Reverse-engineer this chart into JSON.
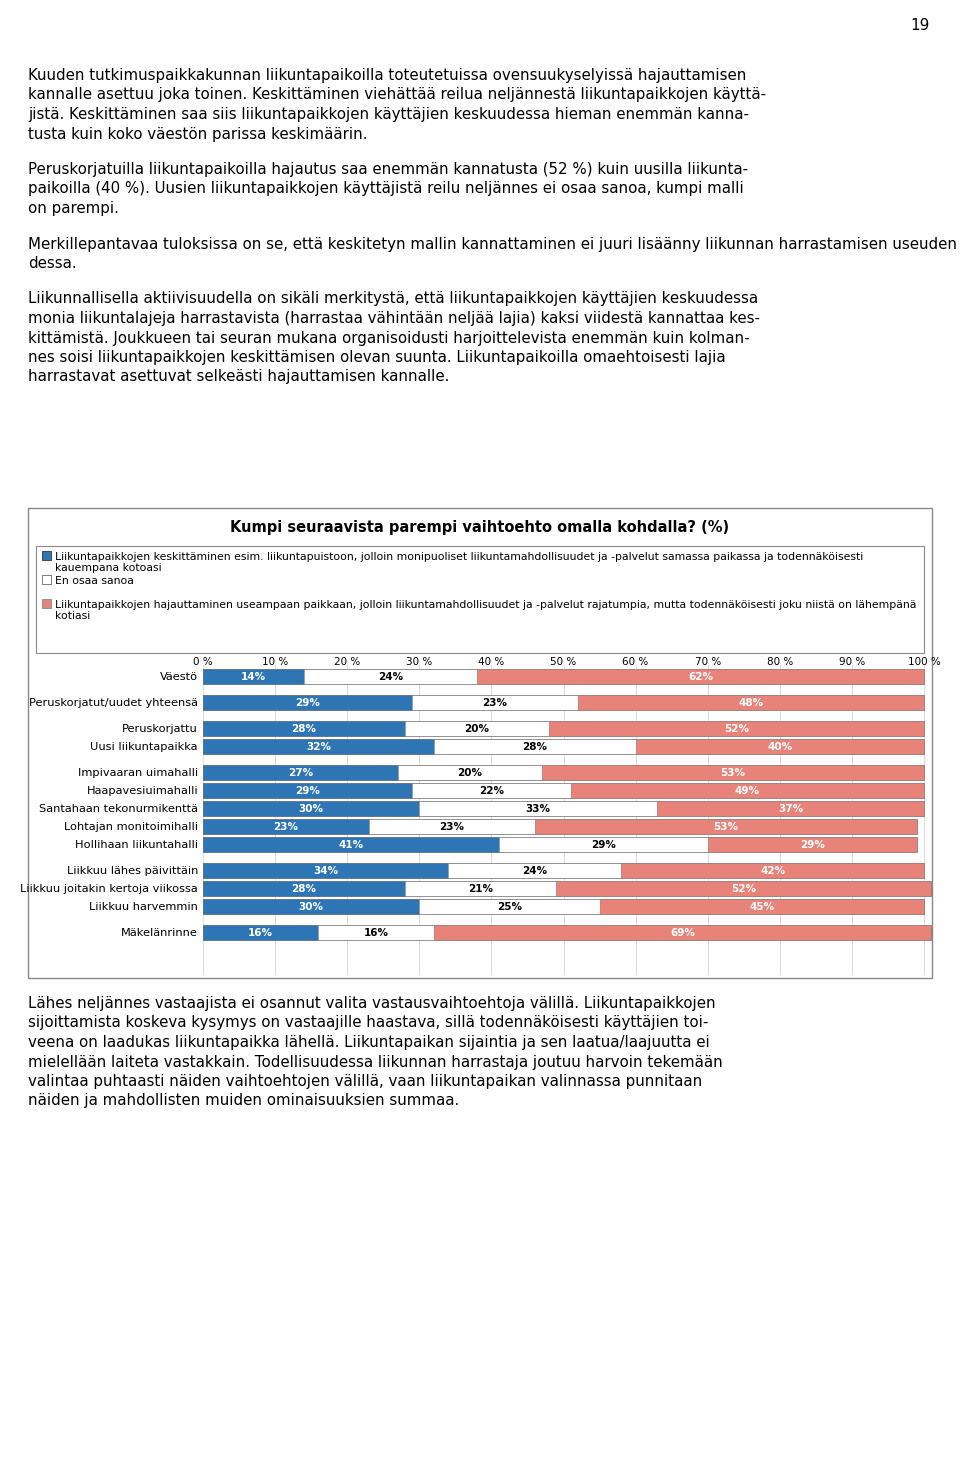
{
  "title": "Kumpi seuraavista parempi vaihtoehto omalla kohdalla? (%)",
  "categories": [
    "Väestö",
    "",
    "Peruskorjatut/uudet yhteensä",
    "",
    "Peruskorjattu",
    "Uusi liikuntapaikka",
    "",
    "Impivaaran uimahalli",
    "Haapavesiuimahalli",
    "Santahaan tekonurmikenttä",
    "Lohtajan monitoimihalli",
    "Hollihaan liikuntahalli",
    "",
    "Liikkuu lähes päivittäin",
    "Liikkuu joitakin kertoja viikossa",
    "Liikkuu harvemmin",
    "",
    "Mäkelänrinne"
  ],
  "blue_vals": [
    14,
    0,
    29,
    0,
    28,
    32,
    0,
    27,
    29,
    30,
    23,
    41,
    0,
    34,
    28,
    30,
    0,
    16
  ],
  "white_vals": [
    24,
    0,
    23,
    0,
    20,
    28,
    0,
    20,
    22,
    33,
    23,
    29,
    0,
    24,
    21,
    25,
    0,
    16
  ],
  "pink_vals": [
    62,
    0,
    48,
    0,
    52,
    40,
    0,
    53,
    49,
    37,
    53,
    29,
    0,
    42,
    52,
    45,
    0,
    69
  ],
  "blue_color": "#2E75B6",
  "pink_color": "#E8837A",
  "page_number": "19",
  "legend_item1": "Liikuntapaikkojen keskittäminen esim. liikuntapuistoon, jolloin monipuoliset liikuntamahdollisuudet ja -palvelut samassa paikassa ja todennäköisesti kauempana kotoasi",
  "legend_item2": "En osaa sanoa",
  "legend_item3": "Liikuntapaikkojen hajauttaminen useampaan paikkaan, jolloin liikuntamahdollisuudet ja -palvelut rajatumpia, mutta todennäköisesti joku niistä on lähempänä kotiasi",
  "para1_line1": "Kuuden tutkimuspaikkakunnan liikuntapaikoilla toteutetuissa ovensuukyselyissä hajauttamisen",
  "para1_line2": "kannalle asettuu joka toinen. Keskittäminen viehättää reilua neljännestä liikuntapaikkojen käyttä-",
  "para1_line3": "jistä. Keskittäminen saa siis liikuntapaikkojen käyttäjien keskuudessa hieman enemmän kanna-",
  "para1_line4": "tusta kuin koko väestön parissa keskimäärin.",
  "para2_line1": "Peruskorjatuilla liikuntapaikoilla hajautus saa enemmän kannatusta (52 %) kuin uusilla liikunta-",
  "para2_line2": "paikoilla (40 %). Uusien liikuntapaikkojen käyttäjistä reilu neljännes ei osaa sanoa, kumpi malli",
  "para2_line3": "on parempi.",
  "para3_line1": "Merkillepantavaa tuloksissa on se, että keskitetyn mallin kannattaminen ei juuri lisäänny liikunnan harrastamisen useuden mukaan liikuntapaikkojen käyttäjien, eikä koko väestökään keskuu-",
  "para3_line2": "dessa.",
  "para4_line1": "Liikunnallisella aktiivisuudella on sikäli merkitystä, että liikuntapaikkojen käyttäjien keskuudessa",
  "para4_line2": "monia liikuntalajeja harrastavista (harrastaa vähintään neljää lajia) kaksi viidestä kannattaa kes-",
  "para4_line3": "kittämistä. Joukkueen tai seuran mukana organisoidusti harjoittelevista enemmän kuin kolman-",
  "para4_line4": "nes soisi liikuntapaikkojen keskittämisen olevan suunta. Liikuntapaikoilla omaehtoisesti lajia",
  "para4_line5": "harrastavat asettuvat selkeästi hajauttamisen kannalle.",
  "para5_line1": "Lähes neljännes vastaajista ei osannut valita vastausvaihtoehtoja välillä. Liikuntapaikkojen",
  "para5_line2": "sijoittamista koskeva kysymys on vastaajille haastava, sillä todennäköisesti käyttäjien toi-",
  "para5_line3": "veena on laadukas liikuntapaikka lähellä. Liikuntapaikan sijaintia ja sen laatua/laajuutta ei",
  "para5_line4": "mielellään laiteta vastakkain. Todellisuudessa liikunnan harrastaja joutuu harvoin tekemään",
  "para5_line5": "valintaa puhtaasti näiden vaihtoehtojen välillä, vaan liikuntapaikan valinnassa punnitaan",
  "para5_line6": "näiden ja mahdollisten muiden ominaisuuksien summaa."
}
